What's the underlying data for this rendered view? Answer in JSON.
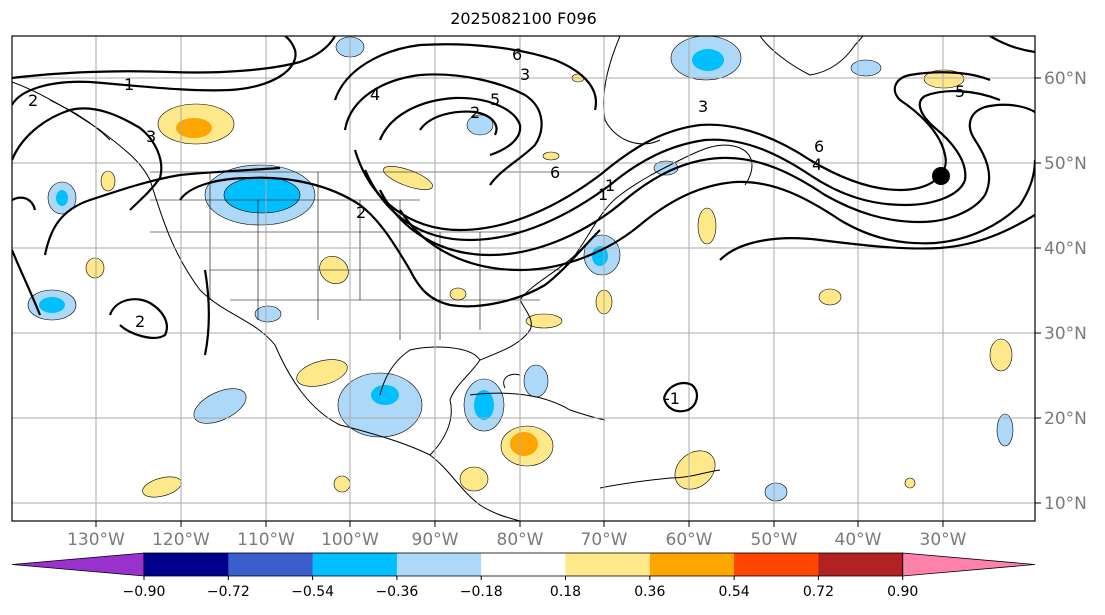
{
  "title": "2025082100 F096",
  "lon_labels": [
    "130°W",
    "120°W",
    "110°W",
    "100°W",
    "90°W",
    "80°W",
    "70°W",
    "60°W",
    "50°W",
    "40°W",
    "30°W"
  ],
  "lat_labels": [
    "60°N",
    "50°N",
    "40°N",
    "30°N",
    "20°N",
    "10°N"
  ],
  "contour_labels": [
    "1",
    "2",
    "3",
    "4",
    "5",
    "6",
    "2",
    "3",
    "1",
    "2",
    "6",
    "4",
    "3",
    "-1",
    "2",
    "1",
    "5",
    "6"
  ],
  "colorbar": {
    "ticks": [
      "−0.90",
      "−0.72",
      "−0.54",
      "−0.36",
      "−0.18",
      "0.18",
      "0.36",
      "0.54",
      "0.72",
      "0.90"
    ],
    "colors": [
      "#9932cc",
      "#00008b",
      "#3a5fcd",
      "#00bfff",
      "#add8f7",
      "#ffffff",
      "#ffe88a",
      "#ffa500",
      "#ff4500",
      "#b22222",
      "#ff82ab"
    ]
  }
}
